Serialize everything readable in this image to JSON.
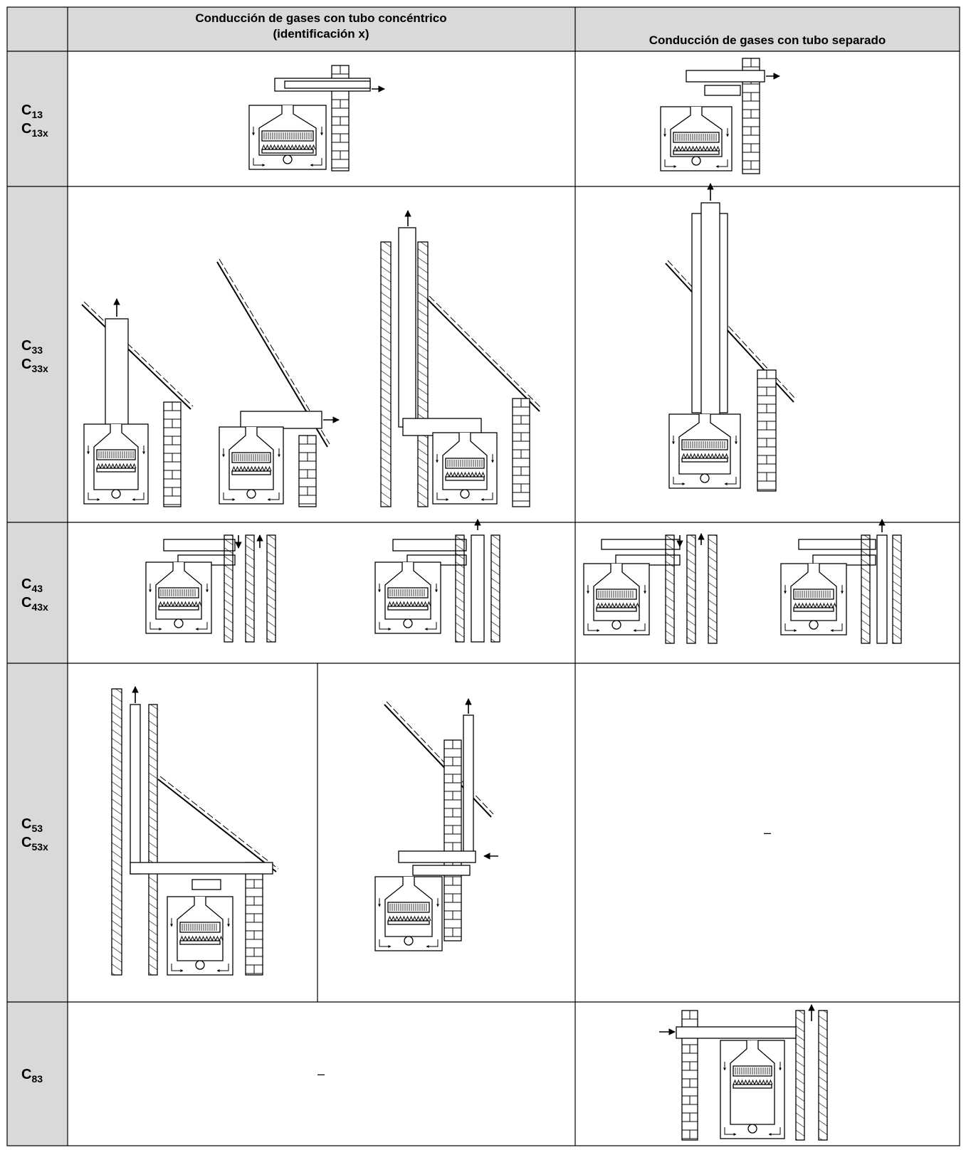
{
  "header": {
    "concentric": [
      "Conducción de gases con tubo concéntrico",
      "(identificación x)"
    ],
    "separate": "Conducción de gases con tubo separado"
  },
  "rows": [
    {
      "labels": [
        {
          "main": "C",
          "sub": "13"
        },
        {
          "main": "C",
          "sub": "13x"
        }
      ]
    },
    {
      "labels": [
        {
          "main": "C",
          "sub": "33"
        },
        {
          "main": "C",
          "sub": "33x"
        }
      ]
    },
    {
      "labels": [
        {
          "main": "C",
          "sub": "43"
        },
        {
          "main": "C",
          "sub": "43x"
        }
      ]
    },
    {
      "labels": [
        {
          "main": "C",
          "sub": "53"
        },
        {
          "main": "C",
          "sub": "53x"
        }
      ],
      "separate": "–"
    },
    {
      "labels": [
        {
          "main": "C",
          "sub": "83"
        }
      ],
      "concentric": "–"
    }
  ]
}
